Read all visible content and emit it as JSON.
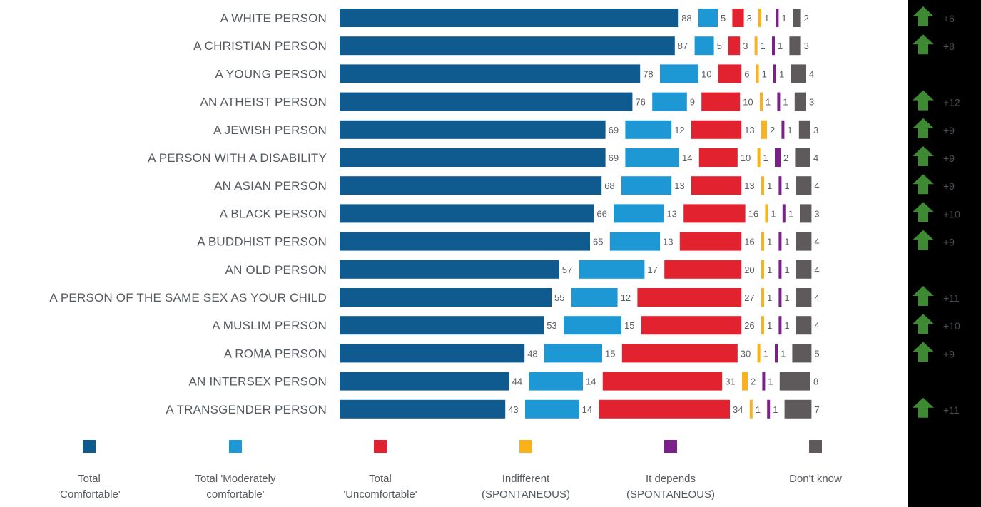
{
  "chart_data": {
    "type": "bar",
    "stacked": true,
    "categories": [
      "A WHITE PERSON",
      "A CHRISTIAN PERSON",
      "A YOUNG PERSON",
      "AN ATHEIST PERSON",
      "A JEWISH PERSON",
      "A PERSON WITH A DISABILITY",
      "AN ASIAN PERSON",
      "A BLACK PERSON",
      "A BUDDHIST PERSON",
      "AN OLD PERSON",
      "A PERSON OF THE SAME SEX AS YOUR CHILD",
      "A MUSLIM PERSON",
      "A ROMA PERSON",
      "AN INTERSEX PERSON",
      "A TRANSGENDER PERSON"
    ],
    "series": [
      {
        "name": "Total 'Comfortable'",
        "color": "#0f5a8e",
        "values": [
          88,
          87,
          78,
          76,
          69,
          69,
          68,
          66,
          65,
          57,
          55,
          53,
          48,
          44,
          43
        ]
      },
      {
        "name": "Total 'Moderately comfortable'",
        "color": "#1e98d5",
        "values": [
          5,
          5,
          10,
          9,
          12,
          14,
          13,
          13,
          13,
          17,
          12,
          15,
          15,
          14,
          14
        ]
      },
      {
        "name": "Total 'Uncomfortable'",
        "color": "#e3222f",
        "values": [
          3,
          3,
          6,
          10,
          13,
          10,
          13,
          16,
          16,
          20,
          27,
          26,
          30,
          31,
          34
        ]
      },
      {
        "name": "Indifferent (SPONTANEOUS)",
        "color": "#f7b21c",
        "values": [
          1,
          1,
          1,
          1,
          2,
          1,
          1,
          1,
          1,
          1,
          1,
          1,
          1,
          2,
          1
        ]
      },
      {
        "name": "It depends (SPONTANEOUS)",
        "color": "#7a2088",
        "values": [
          1,
          1,
          1,
          1,
          1,
          2,
          1,
          1,
          1,
          1,
          1,
          1,
          1,
          1,
          1
        ]
      },
      {
        "name": "Don't know",
        "color": "#5e5a5c",
        "values": [
          2,
          3,
          4,
          3,
          3,
          4,
          4,
          3,
          4,
          4,
          4,
          4,
          5,
          8,
          7
        ]
      }
    ],
    "change_labels": [
      "+6",
      "+8",
      "",
      "+12",
      "+9",
      "+9",
      "+9",
      "+10",
      "+9",
      "",
      "+11",
      "+10",
      "+9",
      "",
      "+11"
    ],
    "change_arrow_color": "#3d8a33",
    "legend": [
      {
        "lines": [
          "Total",
          "'Comfortable'"
        ]
      },
      {
        "lines": [
          "Total 'Moderately",
          "comfortable'"
        ]
      },
      {
        "lines": [
          "Total",
          "'Uncomfortable'"
        ]
      },
      {
        "lines": [
          "Indifferent",
          "(SPONTANEOUS)"
        ]
      },
      {
        "lines": [
          "It depends",
          "(SPONTANEOUS)"
        ]
      },
      {
        "lines": [
          "Don't know"
        ]
      }
    ],
    "legend_placement": "bottom",
    "grid": false
  }
}
